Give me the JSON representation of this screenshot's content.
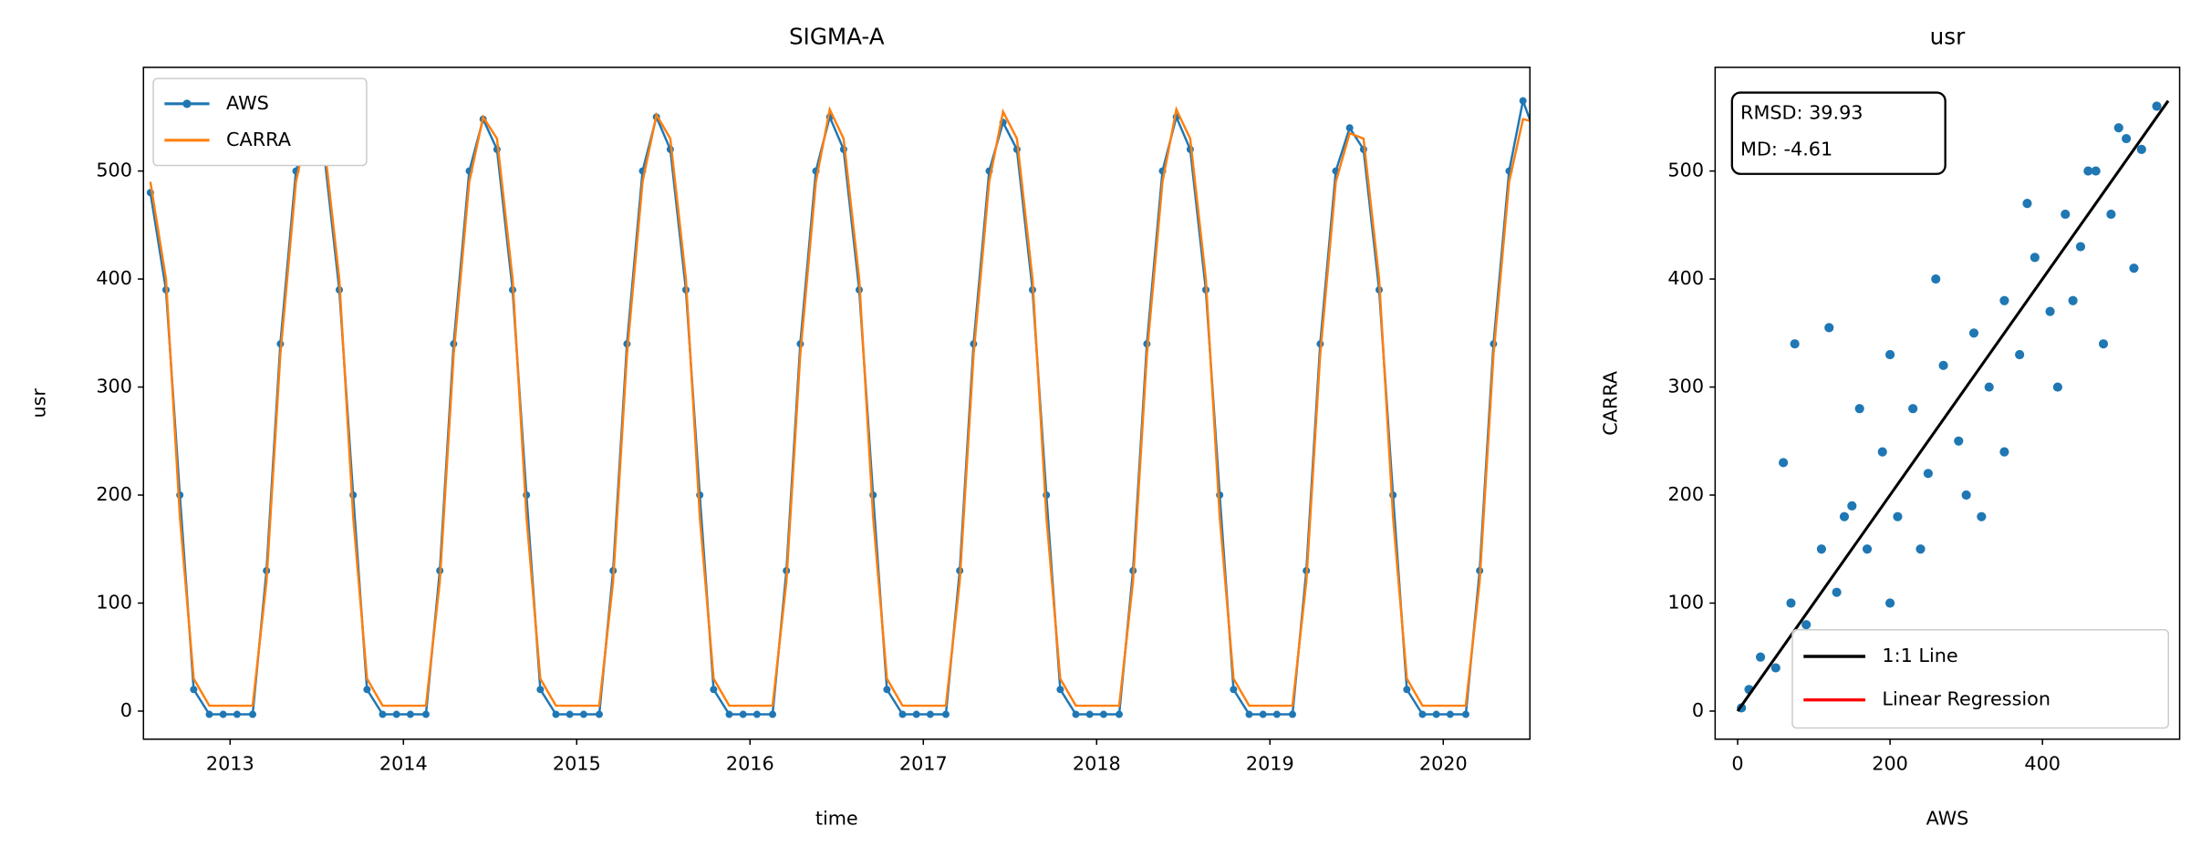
{
  "chart_data": [
    {
      "type": "line",
      "title": "SIGMA-A",
      "xlabel": "time",
      "ylabel": "usr",
      "x": [
        2012.54,
        2012.63,
        2012.71,
        2012.79,
        2012.88,
        2012.96,
        2013.04,
        2013.13,
        2013.21,
        2013.29,
        2013.38,
        2013.46,
        2013.54,
        2013.63,
        2013.71,
        2013.79,
        2013.88,
        2013.96,
        2014.04,
        2014.13,
        2014.21,
        2014.29,
        2014.38,
        2014.46,
        2014.54,
        2014.63,
        2014.71,
        2014.79,
        2014.88,
        2014.96,
        2015.04,
        2015.13,
        2015.21,
        2015.29,
        2015.38,
        2015.46,
        2015.54,
        2015.63,
        2015.71,
        2015.79,
        2015.88,
        2015.96,
        2016.04,
        2016.13,
        2016.21,
        2016.29,
        2016.38,
        2016.46,
        2016.54,
        2016.63,
        2016.71,
        2016.79,
        2016.88,
        2016.96,
        2017.04,
        2017.13,
        2017.21,
        2017.29,
        2017.38,
        2017.46,
        2017.54,
        2017.63,
        2017.71,
        2017.79,
        2017.88,
        2017.96,
        2018.04,
        2018.13,
        2018.21,
        2018.29,
        2018.38,
        2018.46,
        2018.54,
        2018.63,
        2018.71,
        2018.79,
        2018.88,
        2018.96,
        2019.04,
        2019.13,
        2019.21,
        2019.29,
        2019.38,
        2019.46,
        2019.54,
        2019.63,
        2019.71,
        2019.79,
        2019.88,
        2019.96,
        2020.04,
        2020.13,
        2020.21,
        2020.29,
        2020.38,
        2020.46,
        2020.54
      ],
      "series": [
        {
          "name": "AWS",
          "color": "#1f77b4",
          "marker": true,
          "values": [
            480,
            390,
            200,
            20,
            -3,
            -3,
            -3,
            -3,
            130,
            340,
            500,
            545,
            520,
            390,
            200,
            20,
            -3,
            -3,
            -3,
            -3,
            130,
            340,
            500,
            548,
            520,
            390,
            200,
            20,
            -3,
            -3,
            -3,
            -3,
            130,
            340,
            500,
            550,
            520,
            390,
            200,
            20,
            -3,
            -3,
            -3,
            -3,
            130,
            340,
            500,
            550,
            520,
            390,
            200,
            20,
            -3,
            -3,
            -3,
            -3,
            130,
            340,
            500,
            545,
            520,
            390,
            200,
            20,
            -3,
            -3,
            -3,
            -3,
            130,
            340,
            500,
            550,
            520,
            390,
            200,
            20,
            -3,
            -3,
            -3,
            -3,
            130,
            340,
            500,
            540,
            520,
            390,
            200,
            20,
            -3,
            -3,
            -3,
            -3,
            130,
            340,
            500,
            565,
            530
          ]
        },
        {
          "name": "CARRA",
          "color": "#ff7f0e",
          "marker": false,
          "values": [
            490,
            400,
            180,
            30,
            5,
            5,
            5,
            5,
            120,
            330,
            490,
            550,
            530,
            400,
            180,
            30,
            5,
            5,
            5,
            5,
            120,
            330,
            490,
            550,
            530,
            400,
            180,
            30,
            5,
            5,
            5,
            5,
            120,
            330,
            490,
            552,
            530,
            400,
            180,
            30,
            5,
            5,
            5,
            5,
            120,
            330,
            490,
            557,
            530,
            400,
            180,
            30,
            5,
            5,
            5,
            5,
            120,
            330,
            490,
            555,
            530,
            400,
            180,
            30,
            5,
            5,
            5,
            5,
            120,
            330,
            490,
            557,
            530,
            400,
            180,
            30,
            5,
            5,
            5,
            5,
            120,
            330,
            490,
            535,
            530,
            400,
            180,
            30,
            5,
            5,
            5,
            5,
            120,
            330,
            490,
            548,
            545
          ]
        }
      ],
      "xlim": [
        2012.5,
        2020.5
      ],
      "ylim": [
        -26,
        596
      ],
      "xticks": [
        2013,
        2014,
        2015,
        2016,
        2017,
        2018,
        2019,
        2020
      ],
      "yticks": [
        0,
        100,
        200,
        300,
        400,
        500
      ],
      "legend": "upper left"
    },
    {
      "type": "scatter",
      "title": "usr",
      "xlabel": "AWS",
      "ylabel": "CARRA",
      "color": "#1f77b4",
      "x": [
        5,
        15,
        30,
        50,
        70,
        90,
        110,
        130,
        150,
        170,
        190,
        210,
        230,
        250,
        270,
        290,
        310,
        330,
        350,
        370,
        390,
        410,
        430,
        450,
        470,
        490,
        510,
        530,
        550,
        75,
        120,
        160,
        200,
        240,
        300,
        350,
        420,
        480,
        520,
        60,
        140,
        260,
        380,
        460,
        500,
        200,
        320,
        440
      ],
      "values": [
        3,
        20,
        50,
        40,
        100,
        80,
        150,
        110,
        190,
        150,
        240,
        180,
        280,
        220,
        320,
        250,
        350,
        300,
        380,
        330,
        420,
        370,
        460,
        430,
        500,
        460,
        530,
        520,
        560,
        340,
        355,
        280,
        330,
        150,
        200,
        240,
        300,
        340,
        410,
        230,
        180,
        400,
        470,
        500,
        540,
        100,
        180,
        380
      ],
      "lines": [
        {
          "name": "1:1 Line",
          "color": "#000000",
          "x": [
            0,
            565
          ],
          "values": [
            0,
            565
          ]
        },
        {
          "name": "Linear Regression",
          "color": "#ff0000"
        }
      ],
      "annotation": [
        "RMSD: 39.93",
        "MD: -4.61"
      ],
      "xlim": [
        -29.5,
        580
      ],
      "ylim": [
        -26,
        596
      ],
      "xticks": [
        0,
        200,
        400
      ],
      "yticks": [
        0,
        100,
        200,
        300,
        400,
        500
      ],
      "legend": "lower right"
    }
  ]
}
